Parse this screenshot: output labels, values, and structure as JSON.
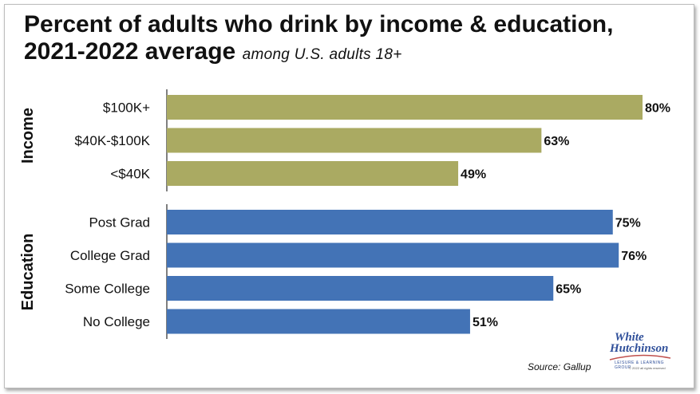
{
  "title": {
    "main_line1": "Percent of adults who drink by income & education,",
    "main_line2": "2021-2022 average",
    "subtitle": "among U.S. adults 18+"
  },
  "source": "Source: Gallup",
  "logo": {
    "line1": "White",
    "line2": "Hutchinson",
    "tagline": "LEISURE & LEARNING GROUP",
    "copyright": "© 2022 all rights reserved"
  },
  "colors": {
    "income": "#aaaa62",
    "education": "#4373b6",
    "axis": "#555555"
  },
  "chart_data": {
    "type": "bar",
    "orientation": "horizontal",
    "xlim": [
      0,
      80
    ],
    "grid": false,
    "groups": [
      {
        "name": "Income",
        "color_key": "income",
        "categories": [
          "$100K+",
          "$40K-$100K",
          "<$40K"
        ],
        "values": [
          80,
          63,
          49
        ],
        "labels": [
          "80%",
          "63%",
          "49%"
        ]
      },
      {
        "name": "Education",
        "color_key": "education",
        "categories": [
          "Post Grad",
          "College Grad",
          "Some College",
          "No College"
        ],
        "values": [
          75,
          76,
          65,
          51
        ],
        "labels": [
          "75%",
          "76%",
          "65%",
          "51%"
        ]
      }
    ]
  }
}
